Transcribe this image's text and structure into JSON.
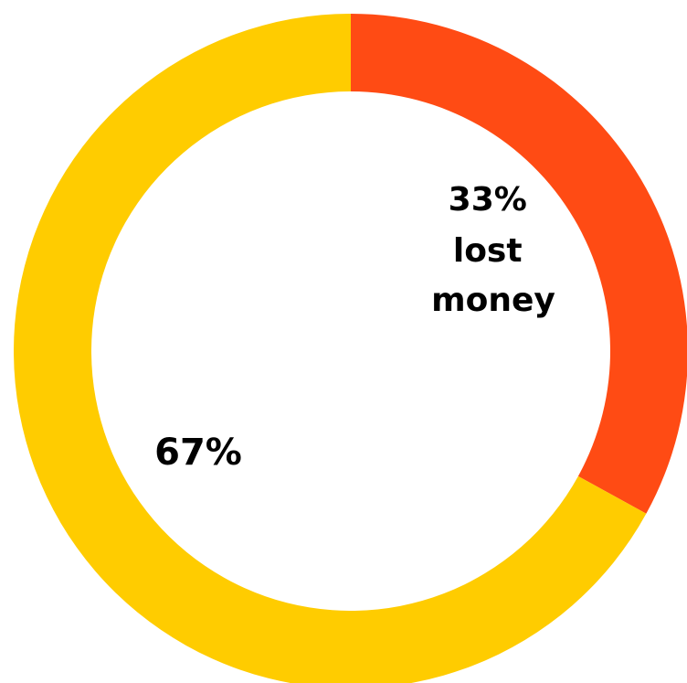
{
  "chart_data": {
    "type": "pie",
    "style": "donut",
    "slices": [
      {
        "value": 33,
        "color": "#FF4B14",
        "label_lines": [
          "33%",
          "lost",
          "money"
        ]
      },
      {
        "value": 67,
        "color": "#FFCC00",
        "label_lines": [
          "67%"
        ]
      }
    ],
    "start_angle_deg": 0,
    "direction": "clockwise",
    "legend": "none"
  }
}
